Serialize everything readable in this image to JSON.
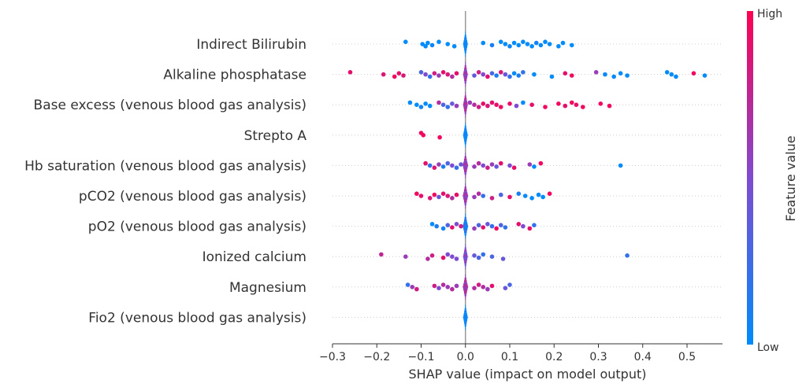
{
  "chart_data": {
    "type": "scatter",
    "subtype": "beeswarm",
    "xlabel": "SHAP value (impact on model output)",
    "xlim": [
      -0.3,
      0.58
    ],
    "xticks": [
      -0.3,
      -0.2,
      -0.1,
      0,
      0.1,
      0.2,
      0.3,
      0.4,
      0.5
    ],
    "xtick_labels": [
      "−0.3",
      "−0.2",
      "−0.1",
      "0.0",
      "0.1",
      "0.2",
      "0.3",
      "0.4",
      "0.5"
    ],
    "colorbar": {
      "label": "Feature value",
      "high_label": "High",
      "low_label": "Low",
      "low_color": "#008bfb",
      "mid_color": "#7f4bd0",
      "high_color": "#ff0052"
    },
    "zero_line_color": "#999999",
    "features": [
      {
        "name": "Indirect Bilirubin",
        "points": [
          [
            -0.135,
            0.0
          ],
          [
            -0.097,
            0.0
          ],
          [
            -0.09,
            0.0
          ],
          [
            -0.085,
            0.0
          ],
          [
            -0.075,
            0.05
          ],
          [
            -0.06,
            0.0
          ],
          [
            -0.04,
            0.0
          ],
          [
            -0.025,
            0.0
          ],
          [
            0.04,
            0.0
          ],
          [
            0.06,
            0.1
          ],
          [
            0.08,
            0.0
          ],
          [
            0.09,
            0.0
          ],
          [
            0.1,
            0.05
          ],
          [
            0.11,
            0.0
          ],
          [
            0.12,
            0.0
          ],
          [
            0.13,
            0.0
          ],
          [
            0.14,
            0.0
          ],
          [
            0.15,
            0.0
          ],
          [
            0.16,
            0.05
          ],
          [
            0.17,
            0.0
          ],
          [
            0.18,
            0.0
          ],
          [
            0.19,
            0.0
          ],
          [
            0.21,
            0.0
          ],
          [
            0.22,
            0.0
          ],
          [
            0.24,
            0.0
          ]
        ]
      },
      {
        "name": "Alkaline phosphatase",
        "points": [
          [
            -0.26,
            0.9
          ],
          [
            -0.185,
            0.85
          ],
          [
            -0.16,
            0.95
          ],
          [
            -0.15,
            0.9
          ],
          [
            -0.14,
            0.85
          ],
          [
            -0.1,
            0.3
          ],
          [
            -0.09,
            0.5
          ],
          [
            -0.08,
            0.2
          ],
          [
            -0.07,
            0.8
          ],
          [
            -0.06,
            0.6
          ],
          [
            -0.05,
            0.9
          ],
          [
            -0.04,
            0.85
          ],
          [
            -0.03,
            0.7
          ],
          [
            -0.02,
            0.9
          ],
          [
            0.02,
            0.4
          ],
          [
            0.03,
            0.8
          ],
          [
            0.04,
            0.5
          ],
          [
            0.05,
            0.9
          ],
          [
            0.06,
            0.3
          ],
          [
            0.07,
            0.1
          ],
          [
            0.08,
            0.85
          ],
          [
            0.09,
            0.4
          ],
          [
            0.1,
            0.2
          ],
          [
            0.11,
            0.0
          ],
          [
            0.12,
            0.1
          ],
          [
            0.13,
            0.2
          ],
          [
            0.155,
            0.0
          ],
          [
            0.195,
            0.0
          ],
          [
            0.225,
            0.9
          ],
          [
            0.24,
            0.95
          ],
          [
            0.295,
            0.6
          ],
          [
            0.315,
            0.0
          ],
          [
            0.335,
            0.0
          ],
          [
            0.35,
            0.0
          ],
          [
            0.365,
            0.0
          ],
          [
            0.455,
            0.0
          ],
          [
            0.465,
            0.0
          ],
          [
            0.475,
            0.0
          ],
          [
            0.515,
            0.95
          ],
          [
            0.54,
            0.0
          ]
        ]
      },
      {
        "name": "Base excess (venous blood gas analysis)",
        "points": [
          [
            -0.125,
            0.0
          ],
          [
            -0.11,
            0.0
          ],
          [
            -0.1,
            0.05
          ],
          [
            -0.09,
            0.0
          ],
          [
            -0.08,
            0.0
          ],
          [
            -0.06,
            0.7
          ],
          [
            -0.05,
            0.3
          ],
          [
            -0.04,
            0.2
          ],
          [
            -0.03,
            0.4
          ],
          [
            -0.02,
            0.6
          ],
          [
            0.01,
            0.6
          ],
          [
            0.02,
            0.7
          ],
          [
            0.03,
            0.8
          ],
          [
            0.04,
            0.9
          ],
          [
            0.05,
            0.85
          ],
          [
            0.06,
            0.9
          ],
          [
            0.07,
            0.9
          ],
          [
            0.08,
            0.95
          ],
          [
            0.1,
            0.9
          ],
          [
            0.115,
            0.5
          ],
          [
            0.13,
            0.0
          ],
          [
            0.15,
            0.9
          ],
          [
            0.18,
            0.95
          ],
          [
            0.21,
            0.95
          ],
          [
            0.225,
            0.9
          ],
          [
            0.24,
            0.95
          ],
          [
            0.25,
            0.9
          ],
          [
            0.265,
            0.95
          ],
          [
            0.305,
            0.95
          ],
          [
            0.325,
            0.95
          ]
        ]
      },
      {
        "name": "Strepto A",
        "points": [
          [
            -0.1,
            0.95
          ],
          [
            -0.095,
            0.95
          ],
          [
            -0.058,
            0.95
          ]
        ]
      },
      {
        "name": "Hb saturation (venous blood gas analysis)",
        "points": [
          [
            -0.09,
            0.9
          ],
          [
            -0.08,
            0.2
          ],
          [
            -0.07,
            0.85
          ],
          [
            -0.06,
            0.6
          ],
          [
            -0.05,
            0.1
          ],
          [
            -0.04,
            0.3
          ],
          [
            -0.03,
            0.5
          ],
          [
            -0.02,
            0.2
          ],
          [
            -0.01,
            0.4
          ],
          [
            0.02,
            0.6
          ],
          [
            0.03,
            0.7
          ],
          [
            0.04,
            0.5
          ],
          [
            0.05,
            0.8
          ],
          [
            0.06,
            0.6
          ],
          [
            0.07,
            0.4
          ],
          [
            0.08,
            0.9
          ],
          [
            0.1,
            0.5
          ],
          [
            0.11,
            0.9
          ],
          [
            0.145,
            0.6
          ],
          [
            0.155,
            0.0
          ],
          [
            0.17,
            0.95
          ],
          [
            0.35,
            0.0
          ]
        ]
      },
      {
        "name": "pCO2 (venous blood gas analysis)",
        "points": [
          [
            -0.11,
            0.95
          ],
          [
            -0.1,
            0.9
          ],
          [
            -0.08,
            0.85
          ],
          [
            -0.07,
            0.95
          ],
          [
            -0.06,
            0.4
          ],
          [
            -0.05,
            0.9
          ],
          [
            -0.04,
            0.85
          ],
          [
            -0.03,
            0.7
          ],
          [
            -0.02,
            0.9
          ],
          [
            0.02,
            0.6
          ],
          [
            0.03,
            0.7
          ],
          [
            0.04,
            0.2
          ],
          [
            0.06,
            0.8
          ],
          [
            0.08,
            0.3
          ],
          [
            0.1,
            0.9
          ],
          [
            0.12,
            0.1
          ],
          [
            0.135,
            0.0
          ],
          [
            0.15,
            0.0
          ],
          [
            0.165,
            0.0
          ],
          [
            0.175,
            0.0
          ],
          [
            0.19,
            0.95
          ]
        ]
      },
      {
        "name": "pO2 (venous blood gas analysis)",
        "points": [
          [
            -0.075,
            0.0
          ],
          [
            -0.065,
            0.1
          ],
          [
            -0.05,
            0.05
          ],
          [
            -0.04,
            0.3
          ],
          [
            -0.03,
            0.9
          ],
          [
            -0.02,
            0.5
          ],
          [
            -0.01,
            0.8
          ],
          [
            0.02,
            0.6
          ],
          [
            0.03,
            0.3
          ],
          [
            0.04,
            0.9
          ],
          [
            0.05,
            0.4
          ],
          [
            0.06,
            0.2
          ],
          [
            0.07,
            0.95
          ],
          [
            0.08,
            0.3
          ],
          [
            0.09,
            0.2
          ],
          [
            0.12,
            0.9
          ],
          [
            0.13,
            0.5
          ],
          [
            0.145,
            0.9
          ],
          [
            0.155,
            0.2
          ]
        ]
      },
      {
        "name": "Ionized calcium ",
        "points": [
          [
            -0.19,
            0.75
          ],
          [
            -0.135,
            0.6
          ],
          [
            -0.085,
            0.7
          ],
          [
            -0.075,
            0.8
          ],
          [
            -0.05,
            0.9
          ],
          [
            -0.04,
            0.5
          ],
          [
            -0.03,
            0.5
          ],
          [
            -0.02,
            0.5
          ],
          [
            0.02,
            0.4
          ],
          [
            0.03,
            0.3
          ],
          [
            0.04,
            0.2
          ],
          [
            0.06,
            0.3
          ],
          [
            0.085,
            0.4
          ],
          [
            0.365,
            0.2
          ]
        ]
      },
      {
        "name": "Magnesium",
        "points": [
          [
            -0.13,
            0.2
          ],
          [
            -0.12,
            0.6
          ],
          [
            -0.11,
            0.8
          ],
          [
            -0.07,
            0.8
          ],
          [
            -0.06,
            0.5
          ],
          [
            -0.05,
            0.7
          ],
          [
            -0.04,
            0.6
          ],
          [
            -0.03,
            0.7
          ],
          [
            -0.02,
            0.6
          ],
          [
            0.02,
            0.7
          ],
          [
            0.03,
            0.8
          ],
          [
            0.04,
            0.7
          ],
          [
            0.05,
            0.6
          ],
          [
            0.06,
            0.9
          ],
          [
            0.09,
            0.4
          ],
          [
            0.1,
            0.3
          ]
        ]
      },
      {
        "name": "Fio2 (venous blood gas analysis)",
        "points": []
      }
    ],
    "center_widths": [
      {
        "half": 0.005,
        "value": 0.0
      },
      {
        "half": 0.005,
        "value": 0.6
      },
      {
        "half": 0.005,
        "value": 0.65
      },
      {
        "half": 0.003,
        "value": 0.0
      },
      {
        "half": 0.006,
        "value": 0.6
      },
      {
        "half": 0.006,
        "value": 0.6
      },
      {
        "half": 0.006,
        "value": 0.1
      },
      {
        "half": 0.004,
        "value": 0.5
      },
      {
        "half": 0.006,
        "value": 0.65
      },
      {
        "half": 0.003,
        "value": 0.0
      }
    ]
  }
}
